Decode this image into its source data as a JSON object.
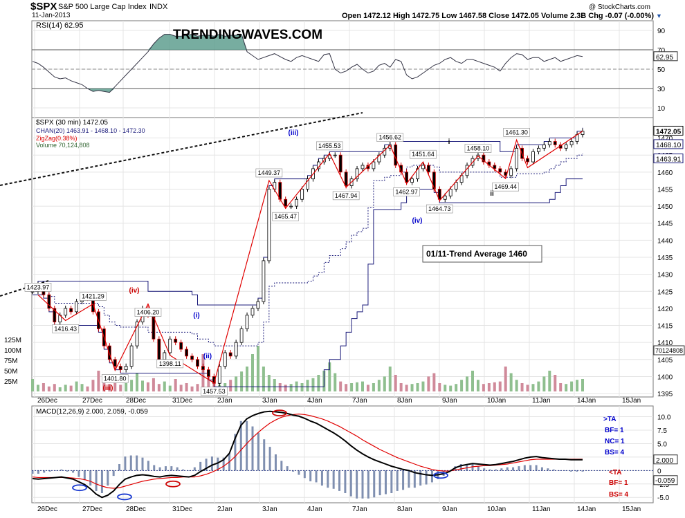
{
  "header": {
    "symbol": "$SPX",
    "name": "S&P 500 Large Cap Index",
    "exchange": "INDX",
    "date": "11-Jan-2013",
    "copyright": "@ StockCharts.com",
    "ohlc": "Open 1472.12  High 1472.75  Low 1467.58  Close 1472.05  Volume 2.3B  Chg -0.07 (-0.00%)"
  },
  "colors": {
    "price_bar": "#000000",
    "channel": "#1a1a7a",
    "zigzag": "#e00000",
    "volume_up": "#8fbf8f",
    "volume_down": "#d08a9a",
    "rsi_fill": "#5f9f8f",
    "macd_signal": "#e00000",
    "annotation_blue": "#0000cc",
    "annotation_red": "#cc0000"
  },
  "chart_data": [
    {
      "type": "line",
      "title": "RSI(14) 62.95",
      "ylim": [
        0,
        100
      ],
      "ticks": [
        "90",
        "70",
        "50",
        "30",
        "10"
      ],
      "tick_values": [
        90,
        70,
        50,
        30,
        10
      ],
      "current_label": "62.95",
      "values": [
        58,
        56,
        52,
        47,
        42,
        40,
        41,
        38,
        36,
        34,
        30,
        27,
        28,
        27,
        26,
        32,
        38,
        44,
        50,
        56,
        62,
        68,
        76,
        82,
        86,
        86,
        84,
        84,
        85,
        86,
        84,
        85,
        85,
        84,
        86,
        84,
        85,
        85,
        86,
        68,
        64,
        60,
        62,
        64,
        66,
        63,
        60,
        58,
        62,
        64,
        62,
        60,
        58,
        65,
        66,
        50,
        46,
        48,
        52,
        55,
        50,
        46,
        48,
        54,
        56,
        52,
        60,
        58,
        44,
        40,
        42,
        46,
        50,
        54,
        56,
        60,
        62,
        58,
        56,
        60,
        60,
        58,
        56,
        54,
        52,
        48,
        56,
        62,
        66,
        65,
        60,
        62,
        62,
        58,
        60,
        62,
        58,
        60,
        62,
        64,
        63
      ]
    },
    {
      "type": "candlestick",
      "title": "$SPX (30 min) 1472.05",
      "legend": [
        "CHAN(20) 1463.91 - 1468.10 - 1472.30",
        "ZigZag(0.38%)",
        "Volume 70,124,808"
      ],
      "ylim": [
        1394,
        1476
      ],
      "tick_values": [
        1470,
        1465,
        1460,
        1455,
        1450,
        1445,
        1440,
        1435,
        1430,
        1425,
        1420,
        1415,
        1410,
        1405,
        1400,
        1395
      ],
      "ticks": [
        "1470",
        "1465",
        "1460",
        "1455",
        "1450",
        "1445",
        "1440",
        "1435",
        "1430",
        "1425",
        "1420",
        "1415",
        "1410",
        "1405",
        "1400",
        "1395"
      ],
      "right_labels": [
        "1472.05",
        "1468.10",
        "1463.91",
        "70124808"
      ],
      "volume_ticks": [
        "125M",
        "100M",
        "75M",
        "50M",
        "25M"
      ],
      "x_labels": [
        "26Dec",
        "27Dec",
        "28Dec",
        "31Dec",
        "2Jan",
        "3Jan",
        "4Jan",
        "7Jan",
        "8Jan",
        "9Jan",
        "10Jan",
        "11Jan",
        "14Jan",
        "15Jan"
      ],
      "closes": [
        1425,
        1427,
        1424,
        1420,
        1416,
        1418,
        1420,
        1419,
        1422,
        1424,
        1423,
        1419,
        1414,
        1409,
        1405,
        1403,
        1402,
        1403,
        1409,
        1416,
        1420,
        1418,
        1411,
        1405,
        1407,
        1411,
        1410,
        1408,
        1406,
        1405,
        1403,
        1402,
        1400,
        1398,
        1403,
        1407,
        1406,
        1410,
        1414,
        1418,
        1420,
        1422,
        1434,
        1455,
        1457,
        1452,
        1450,
        1450,
        1452,
        1455,
        1458,
        1461,
        1463,
        1464,
        1465,
        1465,
        1460,
        1456,
        1458,
        1461,
        1462,
        1461,
        1463,
        1465,
        1467,
        1468,
        1462,
        1460,
        1457,
        1458,
        1461,
        1462,
        1460,
        1455,
        1452,
        1453,
        1455,
        1457,
        1459,
        1462,
        1464,
        1465,
        1463,
        1462,
        1461,
        1460,
        1459,
        1461,
        1467,
        1464,
        1463,
        1466,
        1467,
        1468,
        1469,
        1468,
        1467,
        1468,
        1469,
        1471,
        1472
      ],
      "volumes": [
        15,
        8,
        10,
        6,
        9,
        5,
        8,
        7,
        12,
        9,
        6,
        14,
        25,
        18,
        9,
        12,
        8,
        10,
        14,
        22,
        13,
        11,
        16,
        9,
        12,
        7,
        15,
        8,
        10,
        6,
        9,
        45,
        20,
        12,
        8,
        10,
        14,
        18,
        24,
        30,
        45,
        55,
        30,
        20,
        15,
        10,
        8,
        9,
        12,
        10,
        14,
        16,
        20,
        25,
        35,
        22,
        12,
        9,
        10,
        11,
        12,
        8,
        10,
        14,
        18,
        30,
        20,
        10,
        8,
        9,
        10,
        12,
        18,
        22,
        10,
        8,
        7,
        9,
        14,
        18,
        25,
        14,
        9,
        10,
        11,
        12,
        30,
        22,
        14,
        10,
        8,
        9,
        12,
        18,
        25,
        20,
        10,
        9,
        12,
        14,
        15
      ],
      "annotations": {
        "labels": [
          "1423.97",
          "1416.43",
          "1421.29",
          "1401.80",
          "1406.20",
          "1398.11",
          "1457.53",
          "1449.37",
          "1465.47",
          "1455.53",
          "1467.94",
          "1456.62",
          "1462.97",
          "1451.64",
          "1464.73",
          "1458.10",
          "1469.44",
          "1461.30"
        ],
        "waves": [
          "(iii)",
          "(iv)",
          "(iii)",
          "(iv)",
          "(i)",
          "(ii)",
          "(iii)",
          "(iv)",
          "i",
          "ii"
        ],
        "callout": "01/11-Trend Average 1460",
        "watermark": "TRENDINGWAVES.COM"
      }
    },
    {
      "type": "line",
      "title": "MACD(12,26,9) 2.000, 2.059, -0.059",
      "legend": [
        "2.000",
        "2.059",
        "-0.059"
      ],
      "ylim": [
        -6,
        12
      ],
      "tick_values": [
        10,
        7.5,
        5,
        2.5,
        0,
        -2.5,
        -5
      ],
      "ticks": [
        "10.0",
        "7.5",
        "5.0",
        "2.5",
        "0",
        "-2.5",
        "-5.0"
      ],
      "right_labels": [
        "2.000",
        "-0.059"
      ],
      "macd": [
        -1.5,
        -1.6,
        -1.5,
        -1.4,
        -1.3,
        -1.2,
        -1.4,
        -1.6,
        -2.1,
        -2.6,
        -3.4,
        -4.4,
        -5.0,
        -4.6,
        -3.8,
        -2.6,
        -1.6,
        -1.2,
        -0.9,
        -0.8,
        -0.9,
        -1.1,
        -1.2,
        -1.0,
        -0.9,
        -1.0,
        -1.1,
        -1.2,
        -0.9,
        -0.2,
        0.4,
        1.0,
        1.4,
        2.0,
        3.2,
        6.0,
        8.4,
        9.6,
        10.2,
        10.6,
        10.9,
        11.0,
        10.9,
        10.8,
        10.6,
        10.3,
        10.1,
        9.7,
        9.2,
        8.8,
        8.2,
        7.6,
        7.0,
        6.3,
        5.5,
        4.6,
        3.8,
        3.1,
        2.5,
        2.0,
        1.6,
        1.2,
        0.8,
        0.5,
        0.2,
        0.0,
        -0.4,
        -0.6,
        -0.8,
        -0.9,
        -0.8,
        -0.6,
        -0.2,
        0.5,
        0.9,
        1.1,
        1.3,
        1.2,
        1.1,
        1.0,
        1.1,
        1.3,
        1.5,
        1.7,
        2.0,
        2.3,
        2.5,
        2.6,
        2.4,
        2.3,
        2.2,
        2.1,
        2.1,
        2.0,
        2.0,
        2.0
      ],
      "signal": [
        -1.2,
        -1.3,
        -1.3,
        -1.3,
        -1.3,
        -1.3,
        -1.3,
        -1.4,
        -1.5,
        -1.7,
        -2.0,
        -2.5,
        -2.9,
        -3.2,
        -3.3,
        -3.2,
        -2.9,
        -2.6,
        -2.3,
        -2.0,
        -1.8,
        -1.6,
        -1.5,
        -1.4,
        -1.3,
        -1.3,
        -1.2,
        -1.2,
        -1.2,
        -1.0,
        -0.7,
        -0.3,
        0.2,
        0.8,
        1.6,
        2.6,
        3.8,
        5.0,
        6.1,
        7.1,
        8.0,
        8.8,
        9.4,
        9.9,
        10.2,
        10.4,
        10.5,
        10.4,
        10.2,
        9.9,
        9.6,
        9.2,
        8.7,
        8.2,
        7.6,
        7.0,
        6.4,
        5.7,
        5.1,
        4.5,
        3.9,
        3.4,
        2.9,
        2.4,
        2.0,
        1.6,
        1.2,
        0.8,
        0.5,
        0.2,
        0.0,
        -0.1,
        -0.1,
        0.1,
        0.3,
        0.5,
        0.7,
        0.8,
        0.9,
        0.9,
        1.0,
        1.1,
        1.2,
        1.4,
        1.6,
        1.8,
        2.0,
        2.1,
        2.1,
        2.1,
        2.1,
        2.1,
        2.1,
        2.1,
        2.1,
        2.1
      ],
      "side_text": [
        ">TA",
        "BF= 1",
        "NC= 1",
        "BS= 4",
        "<TA",
        "BF= 1",
        "BS= 4"
      ],
      "x_labels": [
        "26Dec",
        "27Dec",
        "28Dec",
        "31Dec",
        "2Jan",
        "3Jan",
        "4Jan",
        "7Jan",
        "8Jan",
        "9Jan",
        "10Jan",
        "11Jan",
        "14Jan",
        "15Jan"
      ]
    }
  ]
}
